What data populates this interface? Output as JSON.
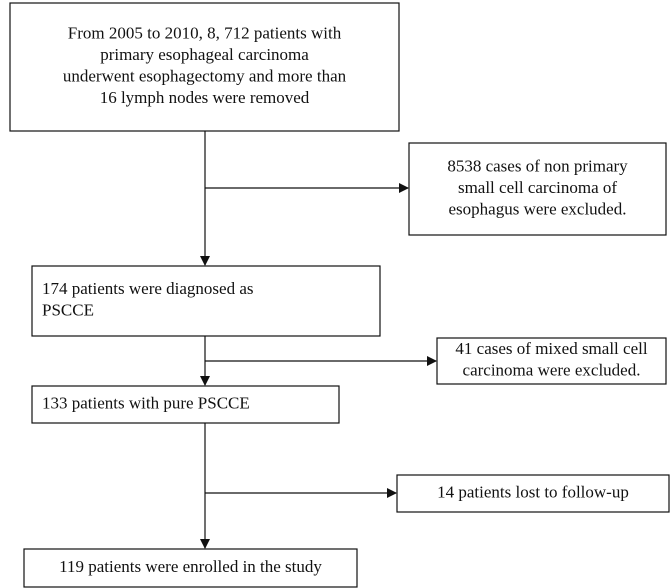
{
  "nodes": [
    {
      "lines": [
        "From 2005 to 2010, 8, 712 patients with",
        "primary esophageal carcinoma",
        "underwent esophagectomy and more than",
        "16 lymph nodes were removed"
      ]
    },
    {
      "lines": [
        "8538 cases of non primary",
        "small cell carcinoma of",
        "esophagus were excluded."
      ]
    },
    {
      "lines": [
        "174 patients were diagnosed as",
        "PSCCE"
      ]
    },
    {
      "lines": [
        "41 cases of mixed small cell",
        "carcinoma were excluded."
      ]
    },
    {
      "lines": [
        "133 patients with pure PSCCE"
      ]
    },
    {
      "lines": [
        "14 patients lost to follow-up"
      ]
    },
    {
      "lines": [
        "119 patients were enrolled in the study"
      ]
    }
  ]
}
